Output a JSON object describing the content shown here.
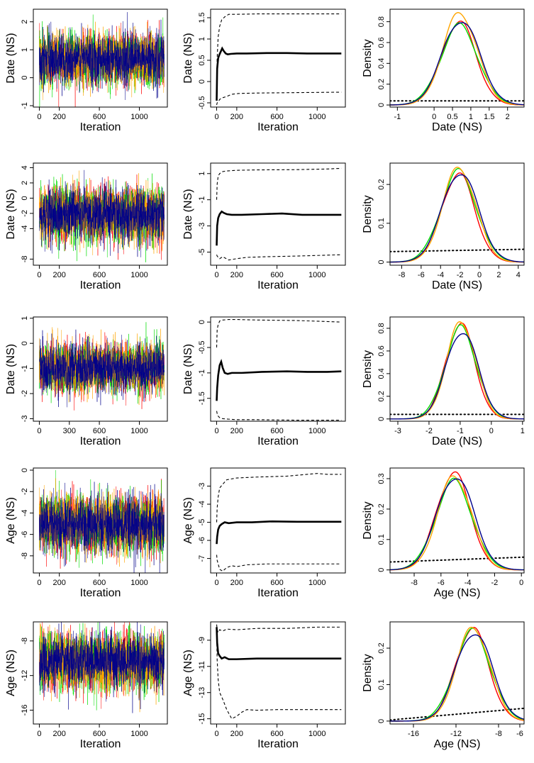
{
  "colors": {
    "chains": [
      "#ff0000",
      "#00dd00",
      "#ffa500",
      "#00008b"
    ],
    "mean_line": "#000000",
    "prior_line": "#000000"
  },
  "chart_data": [
    {
      "row": 0,
      "panels": [
        {
          "type": "line",
          "title": "",
          "xlabel": "Iteration",
          "ylabel": "Date (NS)",
          "xlim": [
            -60,
            1280
          ],
          "ylim": [
            -1.05,
            2.45
          ],
          "xticks": [
            0,
            200,
            600,
            1000
          ],
          "yticks": [
            -1.0,
            0.0,
            1.0,
            2.0
          ],
          "trace": {
            "mean": 0.68,
            "sd": 0.46,
            "n": 1250,
            "chains": 4
          }
        },
        {
          "type": "line",
          "title": "",
          "xlabel": "Iteration",
          "ylabel": "Date (NS)",
          "xlim": [
            -60,
            1280
          ],
          "ylim": [
            -0.6,
            1.7
          ],
          "xticks": [
            0,
            200,
            600,
            1000
          ],
          "yticks": [
            -0.5,
            0.0,
            0.5,
            1.0,
            1.5
          ],
          "series": [
            {
              "style": "solid",
              "x": [
                0,
                5,
                15,
                25,
                40,
                55,
                70,
                90,
                110,
                140,
                200,
                300,
                500,
                700,
                900,
                1100,
                1240
              ],
              "y": [
                -0.45,
                0.3,
                0.55,
                0.62,
                0.7,
                0.78,
                0.72,
                0.66,
                0.64,
                0.65,
                0.66,
                0.66,
                0.67,
                0.67,
                0.66,
                0.66,
                0.66
              ]
            },
            {
              "style": "dashed",
              "x": [
                0,
                5,
                15,
                30,
                50,
                80,
                120,
                200,
                400,
                800,
                1240
              ],
              "y": [
                0.0,
                0.55,
                1.05,
                1.3,
                1.45,
                1.52,
                1.58,
                1.58,
                1.59,
                1.59,
                1.59
              ]
            },
            {
              "style": "dashed",
              "x": [
                0,
                5,
                15,
                30,
                60,
                100,
                150,
                220,
                400,
                800,
                1240
              ],
              "y": [
                -0.55,
                -0.5,
                -0.48,
                -0.42,
                -0.38,
                -0.35,
                -0.3,
                -0.28,
                -0.27,
                -0.26,
                -0.25
              ]
            }
          ]
        },
        {
          "type": "line",
          "title": "",
          "xlabel": "Date (NS)",
          "ylabel": "Density",
          "xlim": [
            -1.2,
            2.45
          ],
          "ylim": [
            -0.02,
            0.92
          ],
          "xticks": [
            -1.0,
            0.0,
            0.5,
            1.0,
            1.5,
            2.0
          ],
          "yticks": [
            0.0,
            0.2,
            0.4,
            0.6,
            0.8
          ],
          "density": {
            "mu": 0.7,
            "sd": 0.48,
            "peaks": [
              0.8,
              0.76,
              0.89,
              0.82
            ]
          },
          "prior": {
            "y0": 0.04,
            "y1": 0.04
          }
        }
      ]
    },
    {
      "row": 1,
      "panels": [
        {
          "type": "line",
          "title": "",
          "xlabel": "Iteration",
          "ylabel": "Date (NS)",
          "xlim": [
            -60,
            1280
          ],
          "ylim": [
            -8.8,
            4.6
          ],
          "xticks": [
            0,
            200,
            600,
            1000
          ],
          "yticks": [
            -8,
            -4,
            -2,
            0,
            2,
            4
          ],
          "trace": {
            "mean": -2.1,
            "sd": 1.75,
            "n": 1250,
            "chains": 4
          }
        },
        {
          "type": "line",
          "title": "",
          "xlabel": "Iteration",
          "ylabel": "Date (NS)",
          "xlim": [
            -60,
            1280
          ],
          "ylim": [
            -6.0,
            1.8
          ],
          "xticks": [
            0,
            200,
            600,
            1000
          ],
          "yticks": [
            -5,
            -3,
            -1,
            1
          ],
          "series": [
            {
              "style": "solid",
              "x": [
                0,
                5,
                15,
                30,
                50,
                70,
                100,
                150,
                250,
                450,
                650,
                850,
                1050,
                1240
              ],
              "y": [
                -4.5,
                -3.0,
                -2.4,
                -2.1,
                -1.9,
                -2.0,
                -2.1,
                -2.15,
                -2.15,
                -2.1,
                -2.05,
                -2.15,
                -2.15,
                -2.15
              ]
            },
            {
              "style": "dashed",
              "x": [
                0,
                5,
                15,
                30,
                60,
                100,
                200,
                400,
                800,
                1100,
                1240
              ],
              "y": [
                -1.0,
                0.2,
                0.8,
                1.0,
                1.15,
                1.2,
                1.25,
                1.28,
                1.3,
                1.35,
                1.4
              ]
            },
            {
              "style": "dashed",
              "x": [
                0,
                5,
                15,
                30,
                60,
                120,
                200,
                300,
                500,
                800,
                1240
              ],
              "y": [
                -5.2,
                -5.3,
                -5.4,
                -5.5,
                -5.35,
                -5.6,
                -5.5,
                -5.4,
                -5.35,
                -5.3,
                -5.2
              ]
            }
          ]
        },
        {
          "type": "line",
          "title": "",
          "xlabel": "Date (NS)",
          "ylabel": "Density",
          "xlim": [
            -9.2,
            4.6
          ],
          "ylim": [
            -0.008,
            0.255
          ],
          "xticks": [
            -8,
            -6,
            -4,
            -2,
            0,
            2,
            4
          ],
          "yticks": [
            0.0,
            0.1,
            0.2
          ],
          "density": {
            "mu": -2.1,
            "sd": 1.75,
            "peaks": [
              0.228,
              0.232,
              0.245,
              0.233
            ]
          },
          "prior": {
            "y0": 0.027,
            "y1": 0.033
          }
        }
      ]
    },
    {
      "row": 2,
      "panels": [
        {
          "type": "line",
          "title": "",
          "xlabel": "Iteration",
          "ylabel": "Date (NS)",
          "xlim": [
            -60,
            1280
          ],
          "ylim": [
            -3.1,
            1.05
          ],
          "xticks": [
            0,
            300,
            600,
            1000
          ],
          "yticks": [
            -3,
            -2,
            -1,
            0,
            1
          ],
          "trace": {
            "mean": -0.97,
            "sd": 0.48,
            "n": 1250,
            "chains": 4
          }
        },
        {
          "type": "line",
          "title": "",
          "xlabel": "Iteration",
          "ylabel": "Date (NS)",
          "xlim": [
            -60,
            1280
          ],
          "ylim": [
            -1.95,
            0.1
          ],
          "xticks": [
            0,
            200,
            600,
            1000
          ],
          "yticks": [
            -1.5,
            -1.0,
            -0.5,
            0.0
          ],
          "series": [
            {
              "style": "solid",
              "x": [
                0,
                5,
                15,
                30,
                45,
                60,
                80,
                110,
                150,
                250,
                450,
                700,
                900,
                1100,
                1240
              ],
              "y": [
                -1.55,
                -1.3,
                -1.05,
                -0.85,
                -0.78,
                -0.9,
                -1.0,
                -1.02,
                -1.0,
                -1.0,
                -0.98,
                -0.97,
                -0.98,
                -0.98,
                -0.97
              ]
            },
            {
              "style": "dashed",
              "x": [
                0,
                5,
                15,
                30,
                60,
                120,
                200,
                400,
                800,
                1240
              ],
              "y": [
                -0.5,
                -0.15,
                -0.05,
                0.02,
                0.04,
                0.05,
                0.05,
                0.04,
                0.03,
                0.0
              ]
            },
            {
              "style": "dashed",
              "x": [
                0,
                5,
                15,
                30,
                60,
                120,
                200,
                400,
                800,
                1240
              ],
              "y": [
                -1.75,
                -1.8,
                -1.85,
                -1.88,
                -1.9,
                -1.91,
                -1.92,
                -1.92,
                -1.93,
                -1.93
              ]
            }
          ]
        },
        {
          "type": "line",
          "title": "",
          "xlabel": "Date (NS)",
          "ylabel": "Density",
          "xlim": [
            -3.25,
            1.05
          ],
          "ylim": [
            -0.02,
            0.9
          ],
          "xticks": [
            -3,
            -2,
            -1,
            0,
            1
          ],
          "yticks": [
            0.0,
            0.2,
            0.4,
            0.6,
            0.8
          ],
          "density": {
            "mu": -0.97,
            "sd": 0.48,
            "peaks": [
              0.84,
              0.8,
              0.86,
              0.78
            ]
          },
          "prior": {
            "y0": 0.04,
            "y1": 0.04
          }
        }
      ]
    },
    {
      "row": 3,
      "panels": [
        {
          "type": "line",
          "title": "",
          "xlabel": "Iteration",
          "ylabel": "Age (NS)",
          "xlim": [
            -60,
            1280
          ],
          "ylim": [
            -9.6,
            0.2
          ],
          "xticks": [
            0,
            200,
            600,
            1000
          ],
          "yticks": [
            -8,
            -6,
            -4,
            -2,
            0
          ],
          "trace": {
            "mean": -5.0,
            "sd": 1.3,
            "n": 1250,
            "chains": 4
          }
        },
        {
          "type": "line",
          "title": "",
          "xlabel": "Iteration",
          "ylabel": "Age (NS)",
          "xlim": [
            -60,
            1280
          ],
          "ylim": [
            -7.8,
            -2.0
          ],
          "xticks": [
            0,
            200,
            600,
            1000
          ],
          "yticks": [
            -7,
            -6,
            -5,
            -4,
            -3
          ],
          "series": [
            {
              "style": "solid",
              "x": [
                0,
                5,
                15,
                30,
                50,
                80,
                120,
                200,
                350,
                550,
                800,
                1000,
                1240
              ],
              "y": [
                -6.2,
                -5.8,
                -5.4,
                -5.2,
                -5.1,
                -5.0,
                -5.05,
                -5.0,
                -5.0,
                -4.95,
                -4.97,
                -4.97,
                -4.97
              ]
            },
            {
              "style": "dashed",
              "x": [
                0,
                5,
                15,
                30,
                60,
                100,
                200,
                400,
                700,
                1000,
                1100,
                1240
              ],
              "y": [
                -5.0,
                -4.2,
                -3.6,
                -3.1,
                -2.9,
                -2.65,
                -2.55,
                -2.5,
                -2.45,
                -2.3,
                -2.35,
                -2.35
              ]
            },
            {
              "style": "dashed",
              "x": [
                0,
                5,
                15,
                30,
                60,
                100,
                150,
                200,
                300,
                500,
                800,
                1240
              ],
              "y": [
                -6.8,
                -7.1,
                -7.3,
                -7.6,
                -7.7,
                -7.5,
                -7.4,
                -7.45,
                -7.35,
                -7.3,
                -7.3,
                -7.3
              ]
            }
          ]
        },
        {
          "type": "line",
          "title": "",
          "xlabel": "Age (NS)",
          "ylabel": "Density",
          "xlim": [
            -9.8,
            0.2
          ],
          "ylim": [
            -0.01,
            0.335
          ],
          "xticks": [
            -8,
            -6,
            -4,
            -2,
            0
          ],
          "yticks": [
            0.0,
            0.1,
            0.2,
            0.3
          ],
          "density": {
            "mu": -5.0,
            "sd": 1.3,
            "peaks": [
              0.32,
              0.29,
              0.31,
              0.31
            ]
          },
          "prior": {
            "y0": 0.026,
            "y1": 0.042
          }
        }
      ]
    },
    {
      "row": 4,
      "panels": [
        {
          "type": "line",
          "title": "",
          "xlabel": "Iteration",
          "ylabel": "Age (NS)",
          "xlim": [
            -60,
            1280
          ],
          "ylim": [
            -17.6,
            -5.8
          ],
          "xticks": [
            0,
            200,
            600,
            1000
          ],
          "yticks": [
            -16,
            -12,
            -8
          ],
          "trace": {
            "mean": -10.4,
            "sd": 1.6,
            "n": 1250,
            "chains": 4
          }
        },
        {
          "type": "line",
          "title": "",
          "xlabel": "Iteration",
          "ylabel": "Age (NS)",
          "xlim": [
            -60,
            1280
          ],
          "ylim": [
            -15.4,
            -7.6
          ],
          "xticks": [
            0,
            200,
            600,
            1000
          ],
          "yticks": [
            -15,
            -13,
            -11,
            -9
          ],
          "series": [
            {
              "style": "solid",
              "x": [
                0,
                5,
                15,
                30,
                50,
                80,
                120,
                200,
                400,
                700,
                1000,
                1240
              ],
              "y": [
                -8.0,
                -9.2,
                -10.0,
                -10.2,
                -10.4,
                -10.3,
                -10.45,
                -10.45,
                -10.4,
                -10.4,
                -10.4,
                -10.4
              ]
            },
            {
              "style": "dashed",
              "x": [
                0,
                5,
                15,
                30,
                60,
                100,
                200,
                400,
                700,
                1000,
                1240
              ],
              "y": [
                -7.8,
                -8.2,
                -8.4,
                -8.2,
                -8.3,
                -8.15,
                -8.2,
                -8.1,
                -8.1,
                -8.0,
                -8.0
              ]
            },
            {
              "style": "dashed",
              "x": [
                0,
                5,
                15,
                30,
                60,
                100,
                150,
                200,
                250,
                300,
                400,
                600,
                900,
                1240
              ],
              "y": [
                -8.5,
                -10.5,
                -12.0,
                -13.0,
                -13.5,
                -14.3,
                -15.0,
                -14.8,
                -14.5,
                -14.3,
                -14.35,
                -14.3,
                -14.3,
                -14.3
              ]
            }
          ]
        },
        {
          "type": "line",
          "title": "",
          "xlabel": "Age (NS)",
          "ylabel": "Density",
          "xlim": [
            -18.2,
            -5.6
          ],
          "ylim": [
            -0.008,
            0.272
          ],
          "xticks": [
            -16,
            -12,
            -8,
            -6
          ],
          "yticks": [
            0.0,
            0.1,
            0.2
          ],
          "density": {
            "mu": -10.4,
            "sd": 1.6,
            "peaks": [
              0.255,
              0.245,
              0.258,
              0.245
            ]
          },
          "prior": {
            "y0": 0.003,
            "y1": 0.035
          }
        }
      ]
    }
  ]
}
